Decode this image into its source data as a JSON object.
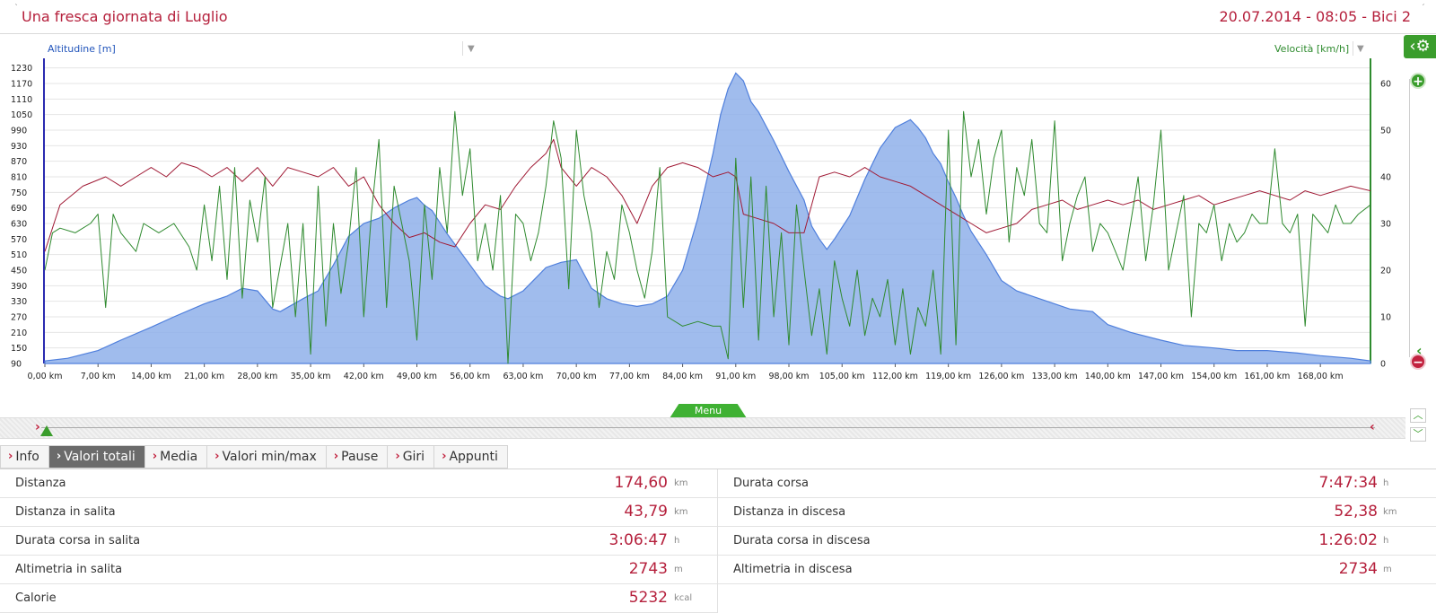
{
  "header": {
    "title": "Una fresca giornata di Luglio",
    "subtitle": "20.07.2014 - 08:05 - Bici 2"
  },
  "chart": {
    "left_axis_selector": "Altitudine [m]",
    "right_axis_selector": "Velocità [km/h]",
    "menu_label": "Menu",
    "gear_icon": "gear-icon"
  },
  "chart_data": {
    "type": "line",
    "xlabel": "",
    "ylabel": "Altitudine [m]",
    "y2label": "Velocità [km/h]",
    "x_ticks": [
      "0,00 km",
      "7,00 km",
      "14,00 km",
      "21,00 km",
      "28,00 km",
      "35,00 km",
      "42,00 km",
      "49,00 km",
      "56,00 km",
      "63,00 km",
      "70,00 km",
      "77,00 km",
      "84,00 km",
      "91,00 km",
      "98,00 km",
      "105,00 km",
      "112,00 km",
      "119,00 km",
      "126,00 km",
      "133,00 km",
      "140,00 km",
      "147,00 km",
      "154,00 km",
      "161,00 km",
      "168,00 km"
    ],
    "y_ticks": [
      90,
      150,
      210,
      270,
      330,
      390,
      450,
      510,
      570,
      630,
      690,
      750,
      810,
      870,
      930,
      990,
      1050,
      1110,
      1170,
      1230
    ],
    "y2_ticks": [
      0,
      10,
      20,
      30,
      40,
      50,
      60
    ],
    "xlim": [
      0,
      174.6
    ],
    "ylim": [
      90,
      1260
    ],
    "y2lim": [
      0,
      65
    ],
    "series": [
      {
        "name": "Altitudine [m]",
        "type": "area",
        "axis": "left",
        "color": "#4f7fdc",
        "x": [
          0,
          3,
          7,
          10,
          14,
          17,
          21,
          24,
          26,
          28,
          30,
          31,
          34,
          36,
          38,
          40,
          42,
          44,
          46,
          48,
          49,
          50,
          51,
          53,
          56,
          58,
          60,
          61,
          63,
          65,
          66,
          68,
          70,
          72,
          74,
          76,
          78,
          80,
          82,
          84,
          86,
          88,
          89,
          90,
          91,
          92,
          93,
          94,
          96,
          98,
          100,
          101,
          102,
          103,
          104,
          106,
          108,
          110,
          112,
          114,
          115,
          116,
          117,
          118,
          119,
          120,
          121,
          122,
          124,
          126,
          128,
          131,
          133,
          135,
          138,
          140,
          143,
          147,
          150,
          154,
          157,
          161,
          165,
          168,
          172,
          174.6
        ],
        "y": [
          100,
          110,
          140,
          180,
          230,
          270,
          320,
          350,
          380,
          370,
          300,
          290,
          340,
          370,
          470,
          580,
          630,
          650,
          690,
          720,
          730,
          700,
          680,
          590,
          470,
          390,
          350,
          340,
          370,
          430,
          460,
          480,
          490,
          380,
          340,
          320,
          310,
          320,
          350,
          450,
          650,
          900,
          1050,
          1150,
          1210,
          1180,
          1100,
          1060,
          950,
          830,
          720,
          620,
          570,
          530,
          570,
          660,
          800,
          920,
          1000,
          1030,
          1000,
          960,
          900,
          860,
          790,
          730,
          660,
          600,
          510,
          410,
          370,
          340,
          320,
          300,
          290,
          240,
          210,
          180,
          160,
          150,
          140,
          140,
          130,
          120,
          110,
          100
        ]
      },
      {
        "name": "",
        "type": "line",
        "axis": "right",
        "color": "#a01a35",
        "x": [
          0,
          2,
          5,
          8,
          10,
          12,
          14,
          16,
          18,
          20,
          22,
          24,
          26,
          28,
          30,
          32,
          34,
          36,
          38,
          40,
          42,
          44,
          46,
          48,
          50,
          52,
          54,
          56,
          58,
          60,
          62,
          64,
          66,
          67,
          68,
          70,
          72,
          74,
          76,
          78,
          80,
          82,
          84,
          86,
          88,
          90,
          91,
          92,
          94,
          96,
          98,
          100,
          102,
          104,
          106,
          108,
          110,
          112,
          114,
          116,
          118,
          120,
          122,
          124,
          126,
          128,
          130,
          132,
          134,
          136,
          138,
          140,
          142,
          144,
          146,
          148,
          150,
          152,
          154,
          156,
          158,
          160,
          162,
          164,
          166,
          168,
          170,
          172,
          174.6
        ],
        "y": [
          24,
          34,
          38,
          40,
          38,
          40,
          42,
          40,
          43,
          42,
          40,
          42,
          39,
          42,
          38,
          42,
          41,
          40,
          42,
          38,
          40,
          34,
          30,
          27,
          28,
          26,
          25,
          30,
          34,
          33,
          38,
          42,
          45,
          48,
          42,
          38,
          42,
          40,
          36,
          30,
          38,
          42,
          43,
          42,
          40,
          41,
          40,
          32,
          31,
          30,
          28,
          28,
          40,
          41,
          40,
          42,
          40,
          39,
          38,
          36,
          34,
          32,
          30,
          28,
          29,
          30,
          33,
          34,
          35,
          33,
          34,
          35,
          34,
          35,
          33,
          34,
          35,
          36,
          34,
          35,
          36,
          37,
          36,
          35,
          37,
          36,
          37,
          38,
          37
        ]
      },
      {
        "name": "",
        "type": "line",
        "axis": "right",
        "color": "#2f8a2f",
        "x": [
          0,
          1,
          2,
          4,
          6,
          7,
          8,
          9,
          10,
          12,
          13,
          15,
          17,
          19,
          20,
          21,
          22,
          23,
          24,
          25,
          26,
          27,
          28,
          29,
          30,
          32,
          33,
          34,
          35,
          36,
          37,
          38,
          39,
          40,
          41,
          42,
          43,
          44,
          45,
          46,
          47,
          48,
          49,
          50,
          51,
          52,
          53,
          54,
          55,
          56,
          57,
          58,
          59,
          60,
          61,
          62,
          63,
          64,
          65,
          66,
          67,
          68,
          69,
          70,
          71,
          72,
          73,
          74,
          75,
          76,
          77,
          78,
          79,
          80,
          81,
          82,
          84,
          86,
          88,
          89,
          90,
          91,
          92,
          93,
          94,
          95,
          96,
          97,
          98,
          99,
          100,
          101,
          102,
          103,
          104,
          105,
          106,
          107,
          108,
          109,
          110,
          111,
          112,
          113,
          114,
          115,
          116,
          117,
          118,
          119,
          120,
          121,
          122,
          123,
          124,
          125,
          126,
          127,
          128,
          129,
          130,
          131,
          132,
          133,
          134,
          135,
          136,
          137,
          138,
          139,
          140,
          141,
          142,
          143,
          144,
          145,
          146,
          147,
          148,
          149,
          150,
          151,
          152,
          153,
          154,
          155,
          156,
          157,
          158,
          159,
          160,
          161,
          162,
          163,
          164,
          165,
          166,
          167,
          168,
          169,
          170,
          171,
          172,
          173,
          174.6
        ],
        "y": [
          20,
          28,
          29,
          28,
          30,
          32,
          12,
          32,
          28,
          24,
          30,
          28,
          30,
          25,
          20,
          34,
          22,
          38,
          18,
          42,
          14,
          35,
          26,
          40,
          12,
          30,
          10,
          30,
          2,
          38,
          8,
          30,
          15,
          26,
          42,
          10,
          32,
          48,
          12,
          38,
          30,
          22,
          5,
          34,
          18,
          42,
          28,
          54,
          36,
          46,
          22,
          30,
          20,
          36,
          0,
          32,
          30,
          22,
          28,
          38,
          52,
          44,
          16,
          50,
          36,
          28,
          12,
          24,
          18,
          34,
          28,
          20,
          14,
          24,
          42,
          10,
          8,
          9,
          8,
          8,
          1,
          44,
          12,
          40,
          5,
          38,
          10,
          28,
          4,
          34,
          20,
          6,
          16,
          2,
          22,
          14,
          8,
          20,
          6,
          14,
          10,
          18,
          4,
          16,
          2,
          12,
          8,
          20,
          2,
          50,
          4,
          54,
          40,
          48,
          32,
          44,
          50,
          26,
          42,
          36,
          48,
          30,
          28,
          52,
          22,
          30,
          36,
          40,
          24,
          30,
          28,
          24,
          20,
          30,
          40,
          22,
          34,
          50,
          20,
          28,
          36,
          10,
          30,
          28,
          34,
          22,
          30,
          26,
          28,
          32,
          30,
          30,
          46,
          30,
          28,
          32,
          8,
          32,
          30,
          28,
          34,
          30,
          30,
          32,
          34
        ]
      }
    ]
  },
  "tabs": [
    {
      "label": "Info",
      "active": false
    },
    {
      "label": "Valori totali",
      "active": true
    },
    {
      "label": "Media",
      "active": false
    },
    {
      "label": "Valori min/max",
      "active": false
    },
    {
      "label": "Pause",
      "active": false
    },
    {
      "label": "Giri",
      "active": false
    },
    {
      "label": "Appunti",
      "active": false
    }
  ],
  "stats": {
    "left": [
      {
        "label": "Distanza",
        "value": "174,60",
        "unit": "km"
      },
      {
        "label": "Distanza in salita",
        "value": "43,79",
        "unit": "km"
      },
      {
        "label": "Durata corsa in salita",
        "value": "3:06:47",
        "unit": "h"
      },
      {
        "label": "Altimetria in salita",
        "value": "2743",
        "unit": "m"
      },
      {
        "label": "Calorie",
        "value": "5232",
        "unit": "kcal"
      }
    ],
    "right": [
      {
        "label": "Durata corsa",
        "value": "7:47:34",
        "unit": "h"
      },
      {
        "label": "Distanza in discesa",
        "value": "52,38",
        "unit": "km"
      },
      {
        "label": "Durata corsa in discesa",
        "value": "1:26:02",
        "unit": "h"
      },
      {
        "label": "Altimetria in discesa",
        "value": "2734",
        "unit": "m"
      }
    ]
  },
  "colors": {
    "accent_red": "#b5203c",
    "accent_green": "#3a9d2c",
    "altitude_fill": "#8fb0ea"
  }
}
